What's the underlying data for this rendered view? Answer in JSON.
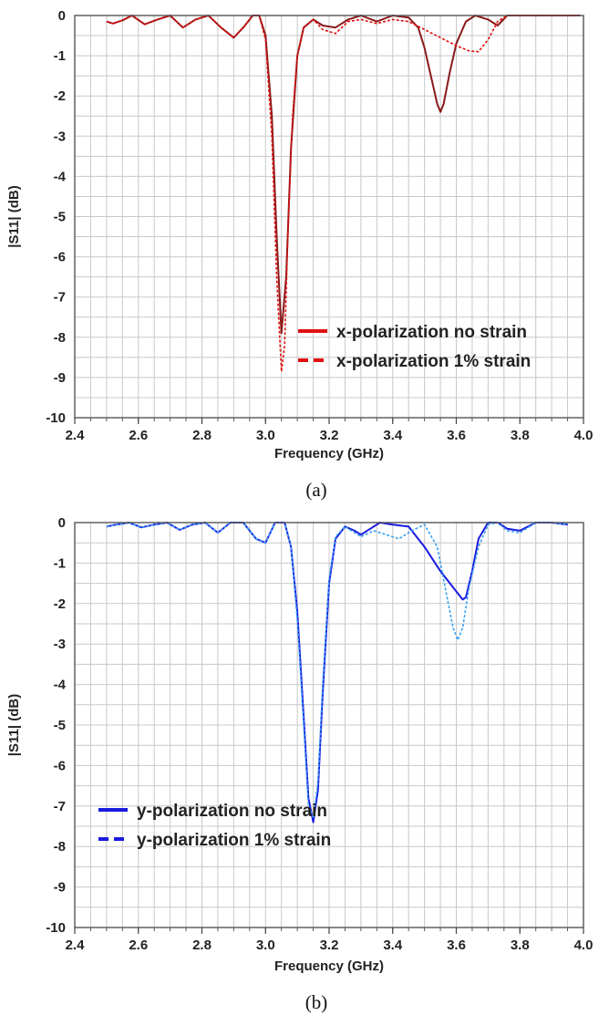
{
  "chart_data": [
    {
      "type": "line",
      "panel_label": "(a)",
      "xlabel": "Frequency (GHz)",
      "ylabel": "|S11| (dB)",
      "xlim": [
        2.4,
        4.0
      ],
      "ylim": [
        -10,
        0
      ],
      "xticks": [
        "2.4",
        "2.6",
        "2.8",
        "3.0",
        "3.2",
        "3.4",
        "3.6",
        "3.8",
        "4.0"
      ],
      "yticks": [
        "0",
        "-1",
        "-2",
        "-3",
        "-4",
        "-5",
        "-6",
        "-7",
        "-8",
        "-9",
        "-10"
      ],
      "grid": true,
      "legend_position": "bottom-right",
      "series": [
        {
          "name": "x-polarization no strain",
          "color": "#8b1a1a",
          "legend_color": "#e01010",
          "dash": false,
          "x": [
            2.5,
            2.52,
            2.55,
            2.58,
            2.62,
            2.66,
            2.7,
            2.74,
            2.78,
            2.82,
            2.86,
            2.9,
            2.93,
            2.96,
            2.98,
            3.0,
            3.02,
            3.035,
            3.05,
            3.065,
            3.08,
            3.1,
            3.12,
            3.15,
            3.18,
            3.22,
            3.26,
            3.3,
            3.35,
            3.4,
            3.45,
            3.48,
            3.5,
            3.52,
            3.54,
            3.55,
            3.56,
            3.58,
            3.6,
            3.63,
            3.66,
            3.7,
            3.73,
            3.76,
            3.8,
            3.85,
            3.9,
            3.95,
            3.99
          ],
          "y": [
            -0.15,
            -0.2,
            -0.12,
            0,
            -0.22,
            -0.1,
            0,
            -0.3,
            -0.1,
            0,
            -0.3,
            -0.55,
            -0.3,
            0,
            0,
            -0.5,
            -2.5,
            -5.5,
            -7.9,
            -6.5,
            -3.3,
            -1.0,
            -0.3,
            -0.1,
            -0.25,
            -0.3,
            -0.1,
            0,
            -0.15,
            0,
            -0.05,
            -0.3,
            -0.8,
            -1.5,
            -2.2,
            -2.4,
            -2.2,
            -1.4,
            -0.7,
            -0.15,
            0,
            -0.1,
            -0.25,
            0,
            0,
            0,
            0,
            0,
            0
          ]
        },
        {
          "name": "x-polarization 1% strain",
          "color": "#e01010",
          "legend_color": "#e01010",
          "dash": true,
          "x": [
            2.5,
            2.52,
            2.55,
            2.58,
            2.62,
            2.66,
            2.7,
            2.74,
            2.78,
            2.82,
            2.86,
            2.9,
            2.93,
            2.96,
            2.98,
            3.0,
            3.02,
            3.035,
            3.05,
            3.06,
            3.07,
            3.085,
            3.1,
            3.12,
            3.15,
            3.18,
            3.22,
            3.26,
            3.3,
            3.35,
            3.4,
            3.45,
            3.5,
            3.55,
            3.6,
            3.64,
            3.67,
            3.7,
            3.73,
            3.76,
            3.8,
            3.85,
            3.9,
            3.95,
            3.99
          ],
          "y": [
            -0.15,
            -0.2,
            -0.12,
            0,
            -0.22,
            -0.1,
            0,
            -0.3,
            -0.1,
            0,
            -0.3,
            -0.55,
            -0.3,
            0,
            0,
            -0.6,
            -3.0,
            -6.5,
            -8.85,
            -8.2,
            -5.5,
            -2.5,
            -1.0,
            -0.3,
            -0.1,
            -0.35,
            -0.45,
            -0.15,
            -0.1,
            -0.2,
            -0.1,
            -0.15,
            -0.35,
            -0.55,
            -0.75,
            -0.88,
            -0.9,
            -0.6,
            -0.15,
            0,
            0,
            0,
            0,
            0,
            0
          ]
        }
      ]
    },
    {
      "type": "line",
      "panel_label": "(b)",
      "xlabel": "Frequency (GHz)",
      "ylabel": "|S11| (dB)",
      "xlim": [
        2.4,
        4.0
      ],
      "ylim": [
        -10,
        0
      ],
      "xticks": [
        "2.4",
        "2.6",
        "2.8",
        "3.0",
        "3.2",
        "3.4",
        "3.6",
        "3.8",
        "4.0"
      ],
      "yticks": [
        "0",
        "-1",
        "-2",
        "-3",
        "-4",
        "-5",
        "-6",
        "-7",
        "-8",
        "-9",
        "-10"
      ],
      "grid": true,
      "legend_position": "bottom-left",
      "series": [
        {
          "name": "y-polarization no strain",
          "color": "#1a1ae0",
          "legend_color": "#1a1ae0",
          "dash": false,
          "x": [
            2.5,
            2.53,
            2.57,
            2.61,
            2.65,
            2.69,
            2.73,
            2.77,
            2.81,
            2.85,
            2.89,
            2.93,
            2.97,
            3.0,
            3.03,
            3.06,
            3.08,
            3.1,
            3.12,
            3.135,
            3.15,
            3.165,
            3.18,
            3.2,
            3.22,
            3.25,
            3.28,
            3.3,
            3.33,
            3.36,
            3.4,
            3.45,
            3.5,
            3.55,
            3.6,
            3.62,
            3.63,
            3.65,
            3.67,
            3.7,
            3.73,
            3.76,
            3.8,
            3.85,
            3.9,
            3.95
          ],
          "y": [
            -0.1,
            -0.05,
            0,
            -0.12,
            -0.05,
            0,
            -0.18,
            -0.05,
            0,
            -0.25,
            0,
            0,
            -0.4,
            -0.5,
            0,
            0,
            -0.6,
            -2.2,
            -4.8,
            -6.8,
            -7.4,
            -6.6,
            -4.2,
            -1.5,
            -0.4,
            -0.1,
            -0.2,
            -0.3,
            -0.15,
            0,
            -0.05,
            -0.1,
            -0.6,
            -1.2,
            -1.7,
            -1.9,
            -1.85,
            -1.2,
            -0.4,
            0,
            0,
            -0.15,
            -0.2,
            0,
            0,
            -0.05
          ]
        },
        {
          "name": "y-polarization 1% strain",
          "color": "#3aa0f0",
          "legend_color": "#1a1ae0",
          "dash": true,
          "x": [
            2.5,
            2.53,
            2.57,
            2.61,
            2.65,
            2.69,
            2.73,
            2.77,
            2.81,
            2.85,
            2.89,
            2.93,
            2.97,
            3.0,
            3.03,
            3.06,
            3.08,
            3.1,
            3.12,
            3.135,
            3.15,
            3.165,
            3.18,
            3.2,
            3.22,
            3.25,
            3.28,
            3.3,
            3.34,
            3.38,
            3.42,
            3.46,
            3.5,
            3.54,
            3.57,
            3.59,
            3.605,
            3.62,
            3.64,
            3.67,
            3.7,
            3.73,
            3.76,
            3.8,
            3.85,
            3.9,
            3.95
          ],
          "y": [
            -0.1,
            -0.05,
            0,
            -0.12,
            -0.05,
            0,
            -0.18,
            -0.05,
            0,
            -0.25,
            0,
            0,
            -0.4,
            -0.5,
            0,
            0,
            -0.6,
            -2.4,
            -5.0,
            -7.0,
            -7.3,
            -6.4,
            -4.0,
            -1.4,
            -0.35,
            -0.1,
            -0.25,
            -0.35,
            -0.2,
            -0.3,
            -0.4,
            -0.2,
            -0.05,
            -0.6,
            -1.8,
            -2.6,
            -2.9,
            -2.6,
            -1.6,
            -0.6,
            -0.05,
            0,
            -0.2,
            -0.25,
            0,
            0,
            -0.05
          ]
        }
      ]
    }
  ]
}
